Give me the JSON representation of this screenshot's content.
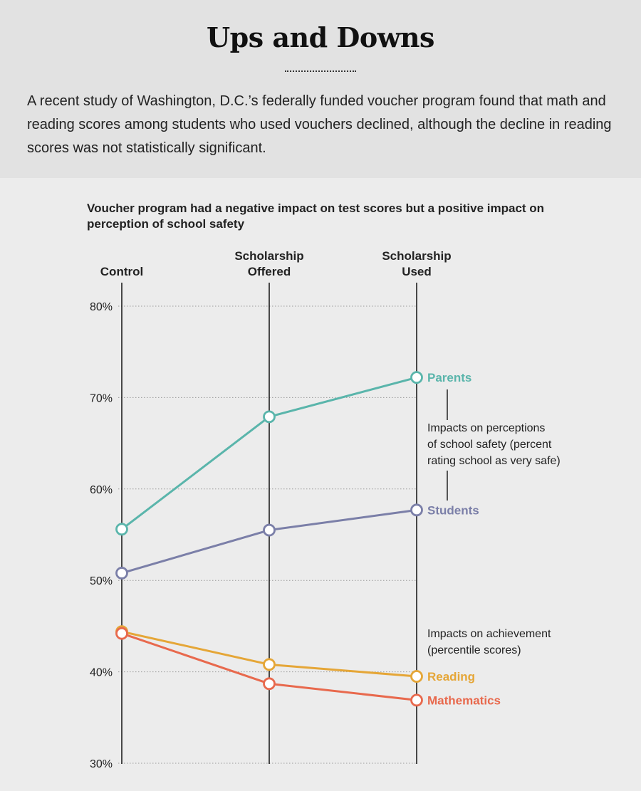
{
  "header": {
    "title": "Ups and Downs",
    "intro": "A recent study of Washington, D.C.’s federally funded voucher program found that math and reading scores among students who used vouchers declined, although the decline in reading scores was not statistically significant."
  },
  "chart_data": {
    "type": "line",
    "title": "Voucher program had a negative impact on test scores but a positive impact on perception of school safety",
    "categories": [
      [
        "Control"
      ],
      [
        "Scholarship",
        "Offered"
      ],
      [
        "Scholarship",
        "Used"
      ]
    ],
    "ylim": [
      30,
      80
    ],
    "yticks": [
      30,
      40,
      50,
      60,
      70,
      80
    ],
    "ytick_labels": [
      "30%",
      "40%",
      "50%",
      "60%",
      "70%",
      "80%"
    ],
    "grid": true,
    "series": [
      {
        "name": "Parents",
        "color": "#5ab5ab",
        "values": [
          55.6,
          67.9,
          72.2
        ]
      },
      {
        "name": "Students",
        "color": "#7b7fa8",
        "values": [
          50.8,
          55.5,
          57.7
        ]
      },
      {
        "name": "Reading",
        "color": "#e5a637",
        "values": [
          44.4,
          40.8,
          39.5
        ]
      },
      {
        "name": "Mathematics",
        "color": "#e8694d",
        "values": [
          44.2,
          38.7,
          36.9
        ]
      }
    ],
    "annotations": {
      "safety": [
        "Impacts on perceptions",
        "of school safety (percent",
        "rating school as very safe)"
      ],
      "achievement": [
        "Impacts on achievement",
        "(percentile scores)"
      ]
    }
  }
}
